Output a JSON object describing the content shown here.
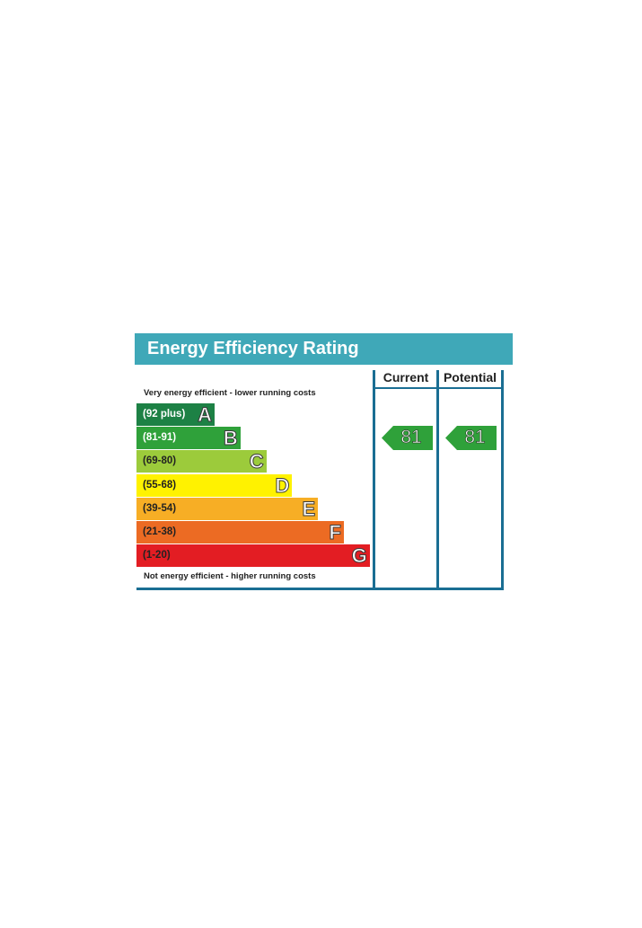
{
  "chart_data": {
    "type": "bar",
    "title": "Energy Efficiency Rating",
    "top_note": "Very energy efficient - lower running costs",
    "bottom_note": "Not energy efficient - higher running costs",
    "columns": [
      "Current",
      "Potential"
    ],
    "bands": [
      {
        "range": "(92 plus)",
        "letter": "A",
        "color": "#1d8145",
        "text_color": "#ffffff"
      },
      {
        "range": "(81-91)",
        "letter": "B",
        "color": "#2fa13a",
        "text_color": "#ffffff"
      },
      {
        "range": "(69-80)",
        "letter": "C",
        "color": "#9ccb3b",
        "text_color": "#222222"
      },
      {
        "range": "(55-68)",
        "letter": "D",
        "color": "#fff200",
        "text_color": "#222222"
      },
      {
        "range": "(39-54)",
        "letter": "E",
        "color": "#f7ae25",
        "text_color": "#222222"
      },
      {
        "range": "(21-38)",
        "letter": "F",
        "color": "#ec6b23",
        "text_color": "#222222"
      },
      {
        "range": "(1-20)",
        "letter": "G",
        "color": "#e31d23",
        "text_color": "#222222"
      }
    ],
    "ratings": {
      "current": {
        "value": "81",
        "band": "B",
        "color": "#2fa13a"
      },
      "potential": {
        "value": "81",
        "band": "B",
        "color": "#2fa13a"
      }
    }
  }
}
